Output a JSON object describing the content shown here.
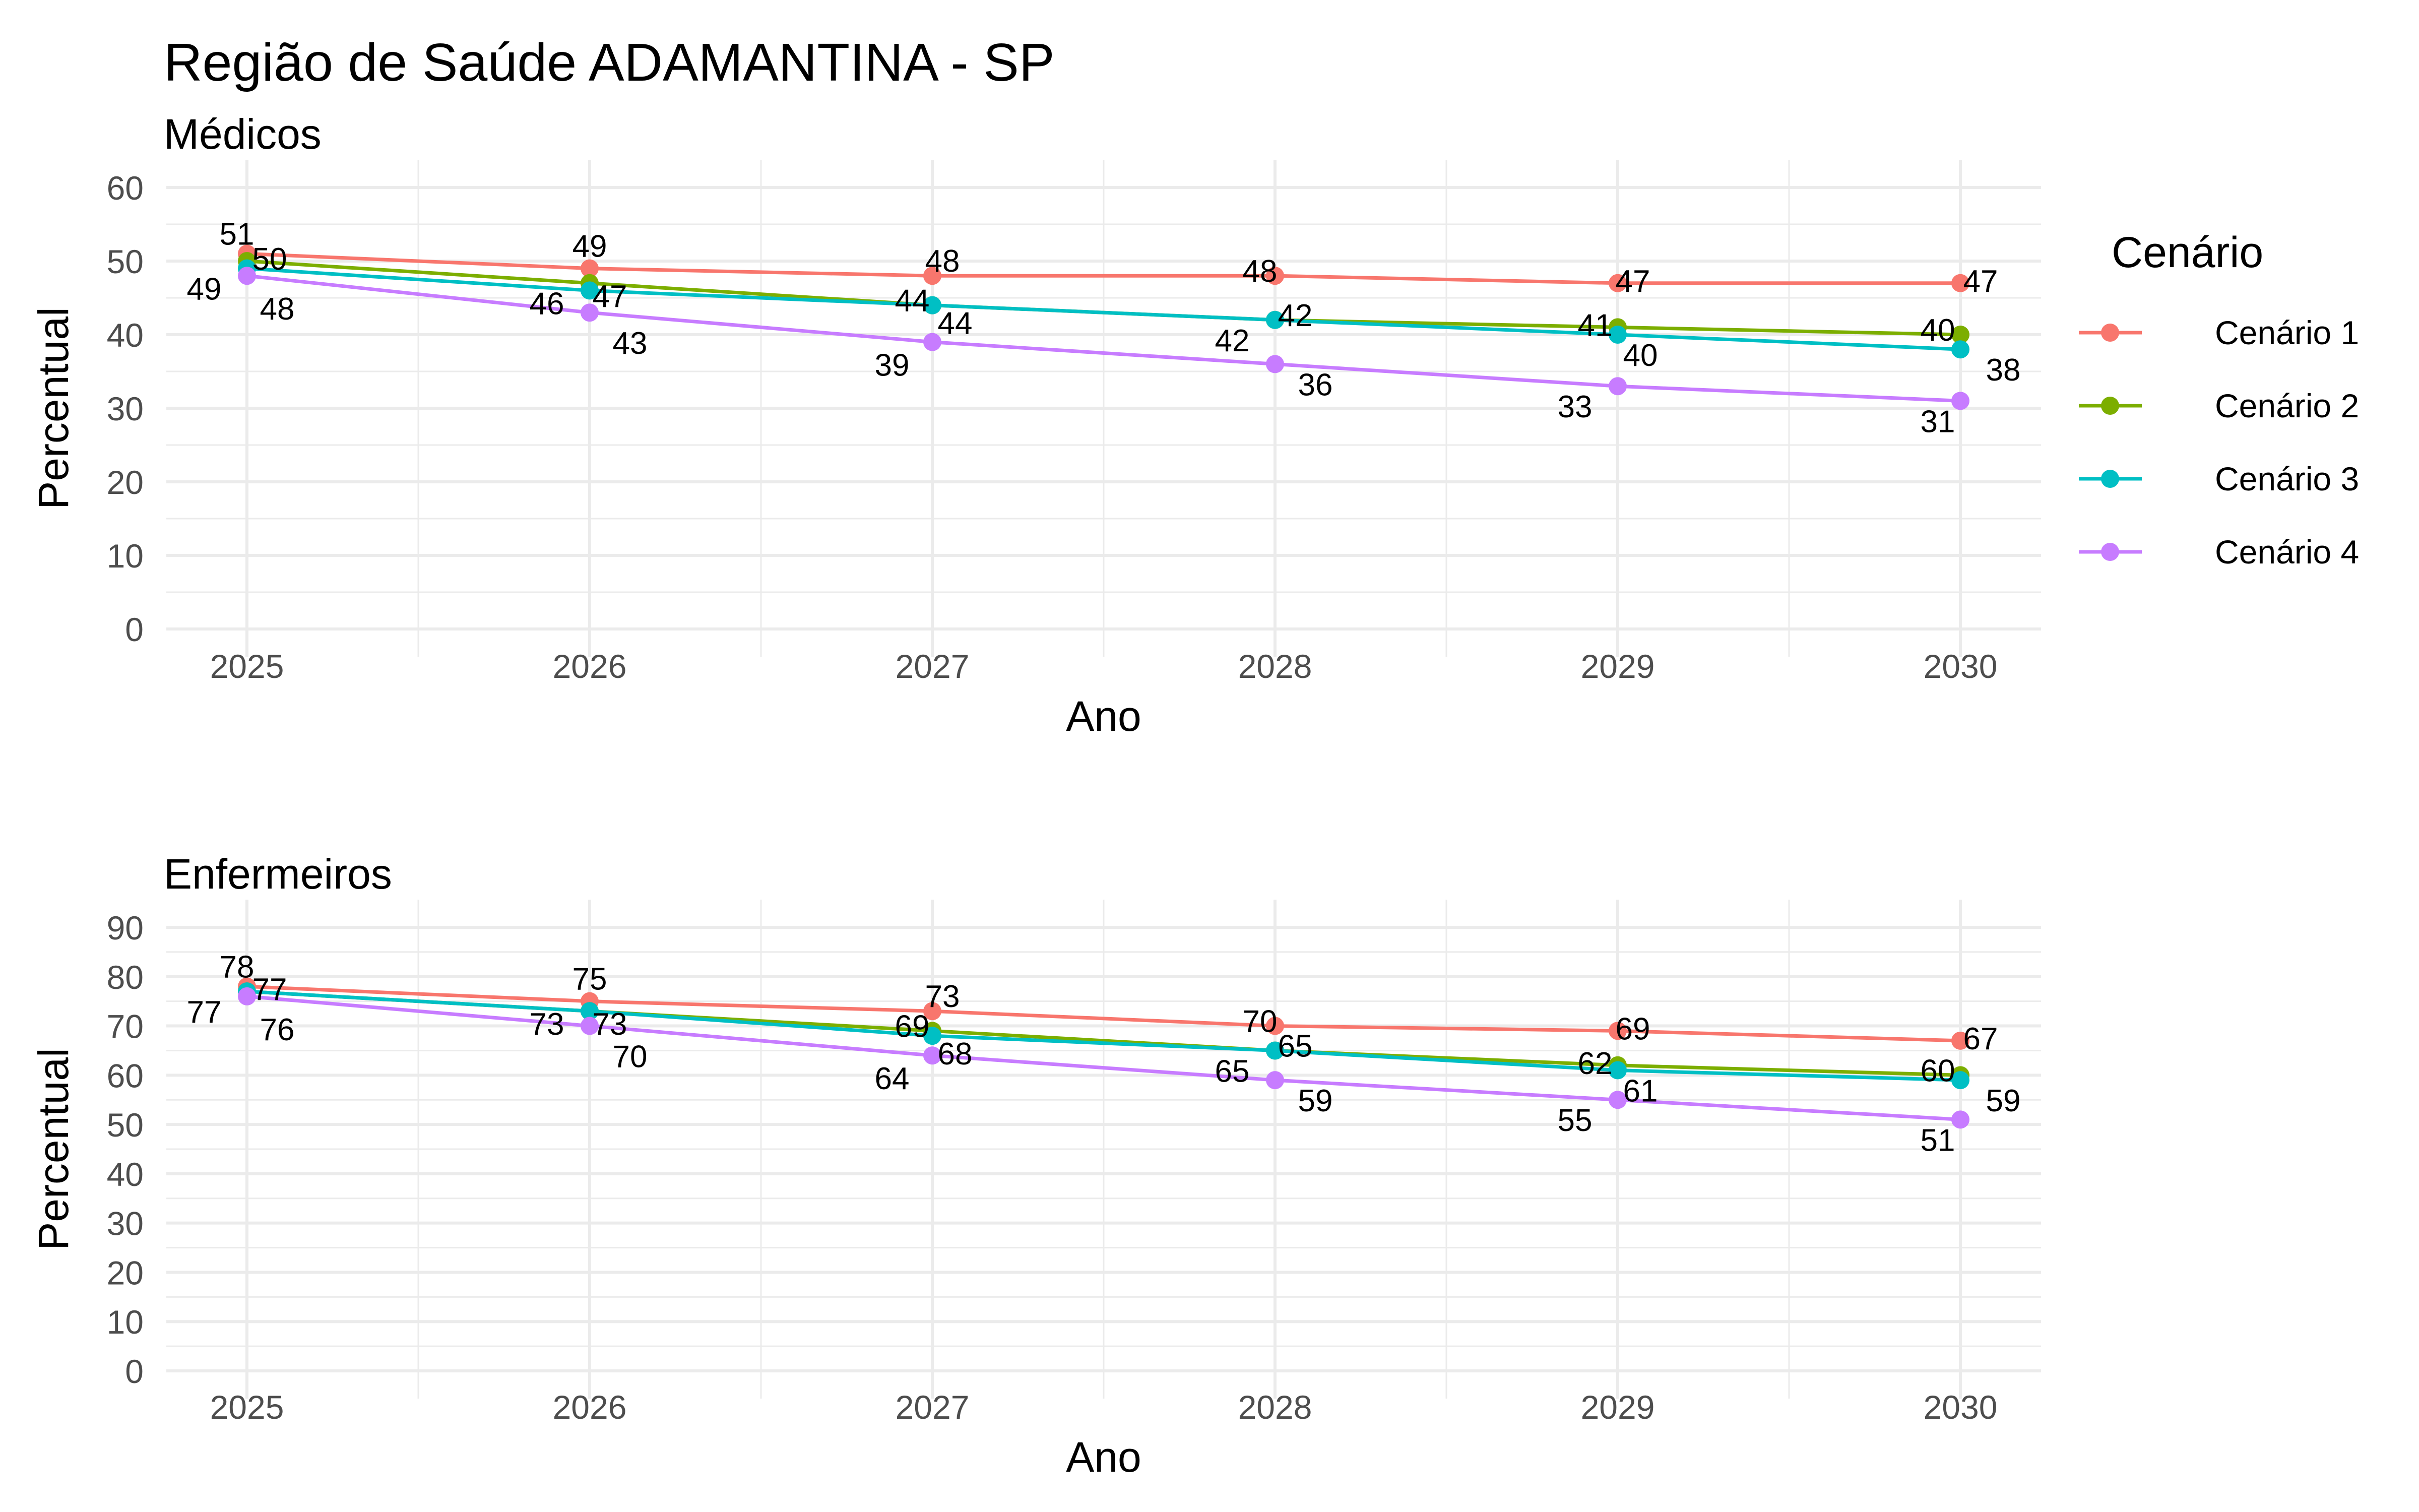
{
  "title": "Região de Saúde ADAMANTINA - SP",
  "legend": {
    "title": "Cenário",
    "placement": "right",
    "items": [
      {
        "label": "Cenário 1",
        "color": "#F8766D"
      },
      {
        "label": "Cenário 2",
        "color": "#7CAE00"
      },
      {
        "label": "Cenário 3",
        "color": "#00BFC4"
      },
      {
        "label": "Cenário 4",
        "color": "#C77CFF"
      }
    ]
  },
  "chart_data": [
    {
      "type": "line",
      "subtitle": "Médicos",
      "xlabel": "Ano",
      "ylabel": "Percentual",
      "x": [
        2025,
        2026,
        2027,
        2028,
        2029,
        2030
      ],
      "x_ticks": [
        "2025",
        "2026",
        "2027",
        "2028",
        "2029",
        "2030"
      ],
      "ylim": [
        0,
        60
      ],
      "y_ticks": [
        "0",
        "10",
        "20",
        "30",
        "40",
        "50",
        "60"
      ],
      "grid": true,
      "series": [
        {
          "name": "Cenário 1",
          "values": [
            51,
            49,
            48,
            48,
            47,
            47
          ]
        },
        {
          "name": "Cenário 2",
          "values": [
            50,
            47,
            44,
            42,
            41,
            40
          ]
        },
        {
          "name": "Cenário 3",
          "values": [
            49,
            46,
            44,
            42,
            40,
            38
          ]
        },
        {
          "name": "Cenário 4",
          "values": [
            48,
            43,
            39,
            36,
            33,
            31
          ]
        }
      ]
    },
    {
      "type": "line",
      "subtitle": "Enfermeiros",
      "xlabel": "Ano",
      "ylabel": "Percentual",
      "x": [
        2025,
        2026,
        2027,
        2028,
        2029,
        2030
      ],
      "x_ticks": [
        "2025",
        "2026",
        "2027",
        "2028",
        "2029",
        "2030"
      ],
      "ylim": [
        0,
        90
      ],
      "y_ticks": [
        "0",
        "10",
        "20",
        "30",
        "40",
        "50",
        "60",
        "70",
        "80",
        "90"
      ],
      "grid": true,
      "series": [
        {
          "name": "Cenário 1",
          "values": [
            78,
            75,
            73,
            70,
            69,
            67
          ]
        },
        {
          "name": "Cenário 2",
          "values": [
            77,
            73,
            69,
            65,
            62,
            60
          ]
        },
        {
          "name": "Cenário 3",
          "values": [
            77,
            73,
            68,
            65,
            61,
            59
          ]
        },
        {
          "name": "Cenário 4",
          "values": [
            76,
            70,
            64,
            59,
            55,
            51
          ]
        }
      ]
    }
  ]
}
